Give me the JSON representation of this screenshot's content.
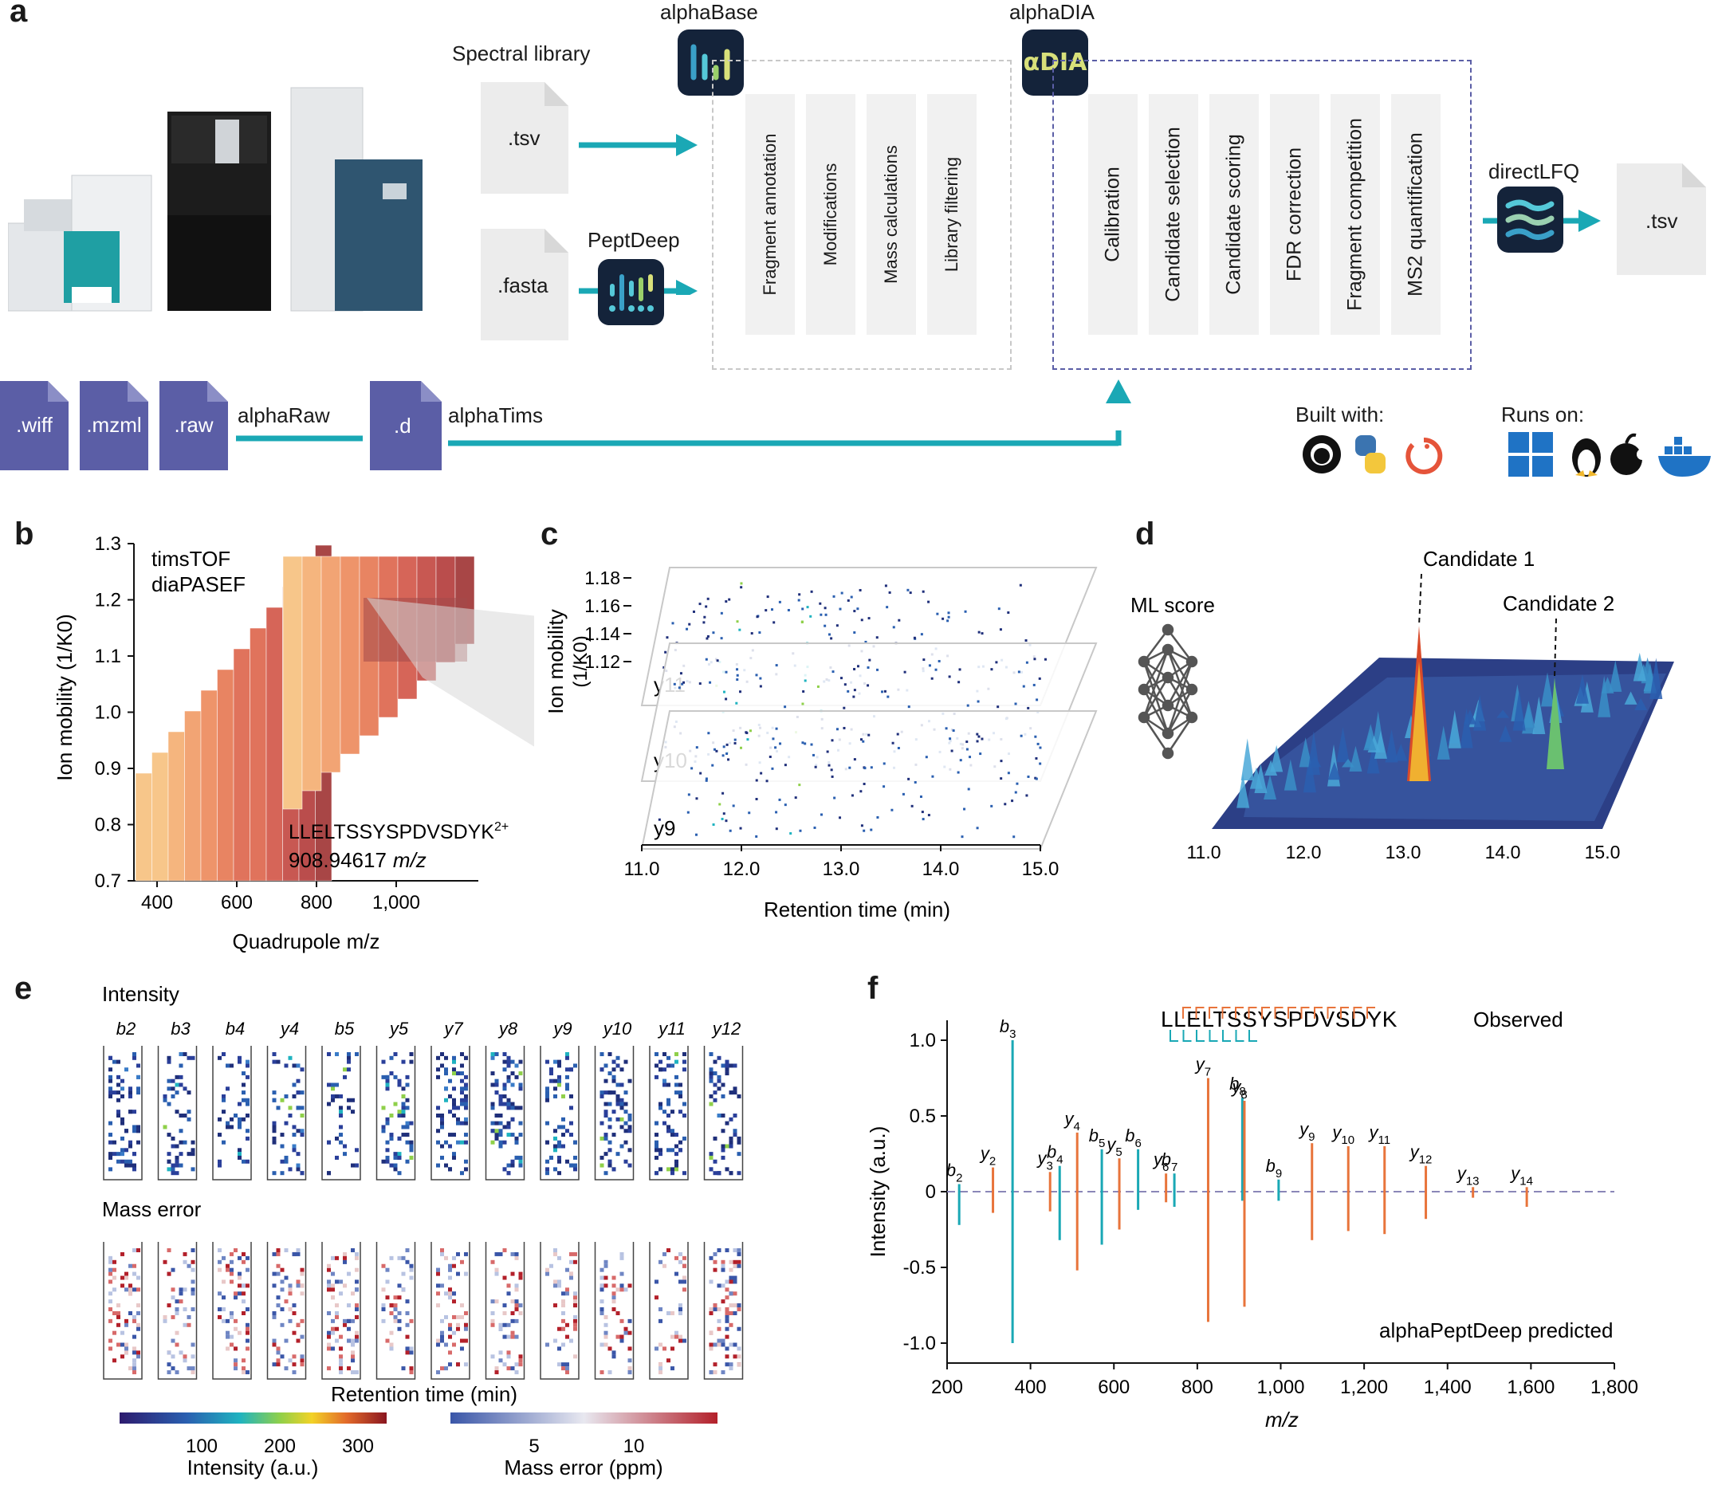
{
  "panels": {
    "a": "a",
    "b": "b",
    "c": "c",
    "d": "d",
    "e": "e",
    "f": "f"
  },
  "panel_a": {
    "spectral_library": "Spectral library",
    "alphabase": "alphaBase",
    "alphadia": "alphaDIA",
    "alphadia_logo_text": "αDIA",
    "peptdeep": "PeptDeep",
    "directlfq": "directLFQ",
    "file_tsv_in": ".tsv",
    "file_fasta": ".fasta",
    "file_tsv_out": ".tsv",
    "alphabase_steps": [
      "Fragment annotation",
      "Modifications",
      "Mass calculations",
      "Library filtering"
    ],
    "alphadia_steps": [
      "Calibration",
      "Candidate selection",
      "Candidate scoring",
      "FDR correction",
      "Fragment competition",
      "MS2 quantification"
    ],
    "raw_files": [
      ".wiff",
      ".mzml",
      ".raw"
    ],
    "alpharaw": "alphaRaw",
    "d_file": ".d",
    "alphatims": "alphaTims",
    "built_with": "Built with:",
    "runs_on": "Runs on:",
    "built_with_icons": [
      "github-icon",
      "python-icon",
      "pytorch-icon"
    ],
    "runs_on_icons": [
      "windows-icon",
      "linux-icon",
      "apple-icon",
      "docker-icon"
    ],
    "colors": {
      "teal": "#1aa8b5",
      "file_purple": "#5b5ea6",
      "dash_purple": "#5b5ea6",
      "logo_bg": "#14233a"
    }
  },
  "panel_b": {
    "title1": "timsTOF",
    "title2": "diaPASEF",
    "ylabel": "Ion mobility (1/K0)",
    "xlabel": "Quadrupole m/z",
    "yticks": [
      "1.3",
      "1.2",
      "1.1",
      "1.0",
      "0.9",
      "0.8",
      "0.7"
    ],
    "xticks": [
      "400",
      "600",
      "800",
      "1,000"
    ],
    "peptide": "LLELTSSYSPDVSDYK",
    "charge": "2+",
    "mz": "908.94617",
    "mz_unit": "m/z"
  },
  "panel_c": {
    "ylabel": "Ion mobility",
    "ylabel2": "(1/K0)",
    "yticks": [
      "1.18",
      "1.16",
      "1.14",
      "1.12"
    ],
    "xticks": [
      "11.0",
      "12.0",
      "13.0",
      "14.0",
      "15.0"
    ],
    "xlabel": "Retention time (min)",
    "layers": [
      "y11",
      "y10",
      "y9"
    ]
  },
  "panel_d": {
    "ml_score": "ML score",
    "candidate1": "Candidate 1",
    "candidate2": "Candidate 2",
    "xticks": [
      "11.0",
      "12.0",
      "13.0",
      "14.0",
      "15.0"
    ]
  },
  "panel_e": {
    "intensity": "Intensity",
    "mass_error": "Mass error",
    "ions": [
      "b2",
      "b3",
      "b4",
      "y4",
      "b5",
      "y5",
      "y7",
      "y8",
      "y9",
      "y10",
      "y11",
      "y12"
    ],
    "xlabel": "Retention time (min)",
    "cbar1_label": "Intensity (a.u.)",
    "cbar1_ticks": [
      "100",
      "200",
      "300"
    ],
    "cbar2_label": "Mass error (ppm)",
    "cbar2_ticks": [
      "5",
      "10"
    ]
  },
  "panel_f": {
    "peptide": "LLELTSSYSPDVSDYK",
    "observed": "Observed",
    "predicted": "alphaPeptDeep predicted",
    "ylabel": "Intensity (a.u.)",
    "xlabel": "m/z",
    "colors": {
      "b": "#1aa8b5",
      "y": "#e8743b",
      "zero": "#8a87b8"
    }
  },
  "chart_data": {
    "type": "bar",
    "title": "",
    "xlabel": "m/z",
    "ylabel": "Intensity (a.u.)",
    "xlim": [
      200,
      1800
    ],
    "ylim": [
      -1.0,
      1.0
    ],
    "xticks": [
      "200",
      "400",
      "600",
      "800",
      "1,000",
      "1,200",
      "1,400",
      "1,600",
      "1,800"
    ],
    "yticks": [
      "1.0",
      "0.5",
      "0",
      "-0.5",
      "-1.0"
    ],
    "series": [
      {
        "name": "Observed",
        "points": [
          {
            "label": "b2",
            "base": "b",
            "sub": "2",
            "type": "b",
            "mz": 229,
            "value": 0.05
          },
          {
            "label": "y2",
            "base": "y",
            "sub": "2",
            "type": "y",
            "mz": 310,
            "value": 0.16
          },
          {
            "label": "b3",
            "base": "b",
            "sub": "3",
            "type": "b",
            "mz": 357,
            "value": 1.0
          },
          {
            "label": "y3",
            "base": "y",
            "sub": "3",
            "type": "y",
            "mz": 447,
            "value": 0.13
          },
          {
            "label": "b4",
            "base": "b",
            "sub": "4",
            "type": "b",
            "mz": 470,
            "value": 0.17
          },
          {
            "label": "y4",
            "base": "y",
            "sub": "4",
            "type": "y",
            "mz": 512,
            "value": 0.39
          },
          {
            "label": "b5",
            "base": "b",
            "sub": "5",
            "type": "b",
            "mz": 571,
            "value": 0.28
          },
          {
            "label": "y5",
            "base": "y",
            "sub": "5",
            "type": "y",
            "mz": 613,
            "value": 0.22
          },
          {
            "label": "b6",
            "base": "b",
            "sub": "6",
            "type": "b",
            "mz": 658,
            "value": 0.28
          },
          {
            "label": "y6",
            "base": "y",
            "sub": "6",
            "type": "y",
            "mz": 725,
            "value": 0.12
          },
          {
            "label": "b7",
            "base": "b",
            "sub": "7",
            "type": "b",
            "mz": 745,
            "value": 0.12
          },
          {
            "label": "y7",
            "base": "y",
            "sub": "7",
            "type": "y",
            "mz": 826,
            "value": 0.75
          },
          {
            "label": "b8",
            "base": "b",
            "sub": "8",
            "type": "b",
            "mz": 908,
            "value": 0.62
          },
          {
            "label": "y8",
            "base": "y",
            "sub": "8",
            "type": "y",
            "mz": 913,
            "value": 0.6
          },
          {
            "label": "b9",
            "base": "b",
            "sub": "9",
            "type": "b",
            "mz": 995,
            "value": 0.08
          },
          {
            "label": "y9",
            "base": "y",
            "sub": "9",
            "type": "y",
            "mz": 1075,
            "value": 0.32
          },
          {
            "label": "y10",
            "base": "y",
            "sub": "10",
            "type": "y",
            "mz": 1162,
            "value": 0.3
          },
          {
            "label": "y11",
            "base": "y",
            "sub": "11",
            "type": "y",
            "mz": 1249,
            "value": 0.3
          },
          {
            "label": "y12",
            "base": "y",
            "sub": "12",
            "type": "y",
            "mz": 1348,
            "value": 0.17
          },
          {
            "label": "y13",
            "base": "y",
            "sub": "13",
            "type": "y",
            "mz": 1461,
            "value": 0.03
          },
          {
            "label": "y14",
            "base": "y",
            "sub": "14",
            "type": "y",
            "mz": 1590,
            "value": 0.03
          }
        ]
      },
      {
        "name": "alphaPeptDeep predicted",
        "points": [
          {
            "label": "b2",
            "type": "b",
            "mz": 229,
            "value": -0.22
          },
          {
            "label": "y2",
            "type": "y",
            "mz": 310,
            "value": -0.14
          },
          {
            "label": "b3",
            "type": "b",
            "mz": 357,
            "value": -1.0
          },
          {
            "label": "y3",
            "type": "y",
            "mz": 447,
            "value": -0.13
          },
          {
            "label": "b4",
            "type": "b",
            "mz": 470,
            "value": -0.32
          },
          {
            "label": "y4",
            "type": "y",
            "mz": 512,
            "value": -0.52
          },
          {
            "label": "b5",
            "type": "b",
            "mz": 571,
            "value": -0.35
          },
          {
            "label": "y5",
            "type": "y",
            "mz": 613,
            "value": -0.25
          },
          {
            "label": "b6",
            "type": "b",
            "mz": 658,
            "value": -0.12
          },
          {
            "label": "y6",
            "type": "y",
            "mz": 725,
            "value": -0.07
          },
          {
            "label": "b7",
            "type": "b",
            "mz": 745,
            "value": -0.1
          },
          {
            "label": "y7",
            "type": "y",
            "mz": 826,
            "value": -0.86
          },
          {
            "label": "b8",
            "type": "b",
            "mz": 908,
            "value": -0.06
          },
          {
            "label": "y8",
            "type": "y",
            "mz": 913,
            "value": -0.76
          },
          {
            "label": "b9",
            "type": "b",
            "mz": 995,
            "value": -0.06
          },
          {
            "label": "y9",
            "type": "y",
            "mz": 1075,
            "value": -0.32
          },
          {
            "label": "y10",
            "type": "y",
            "mz": 1162,
            "value": -0.26
          },
          {
            "label": "y11",
            "type": "y",
            "mz": 1249,
            "value": -0.28
          },
          {
            "label": "y12",
            "type": "y",
            "mz": 1348,
            "value": -0.18
          },
          {
            "label": "y13",
            "type": "y",
            "mz": 1461,
            "value": -0.04
          },
          {
            "label": "y14",
            "type": "y",
            "mz": 1590,
            "value": -0.1
          }
        ]
      }
    ]
  }
}
